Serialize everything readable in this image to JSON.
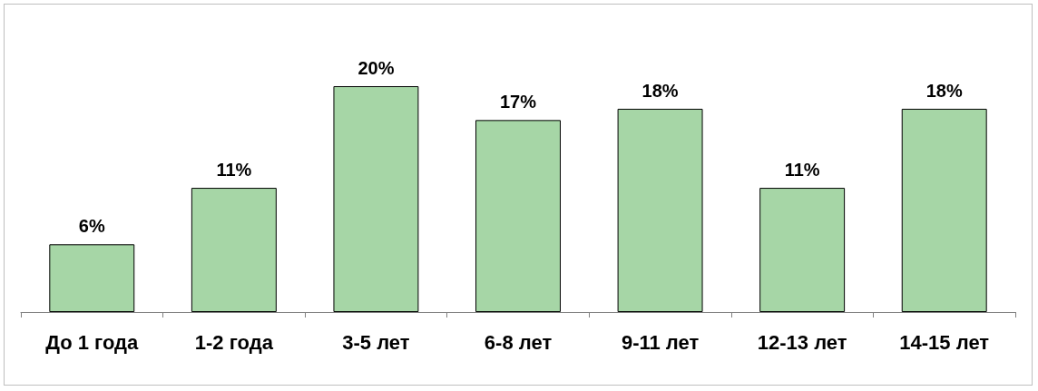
{
  "chart_data": {
    "type": "bar",
    "categories": [
      "До 1 года",
      "1-2 года",
      "3-5 лет",
      "6-8 лет",
      "9-11 лет",
      "12-13 лет",
      "14-15 лет"
    ],
    "values": [
      6,
      11,
      20,
      17,
      18,
      11,
      18
    ],
    "value_labels": [
      "6%",
      "11%",
      "20%",
      "17%",
      "18%",
      "11%",
      "18%"
    ],
    "color": "#a6d6a6"
  }
}
